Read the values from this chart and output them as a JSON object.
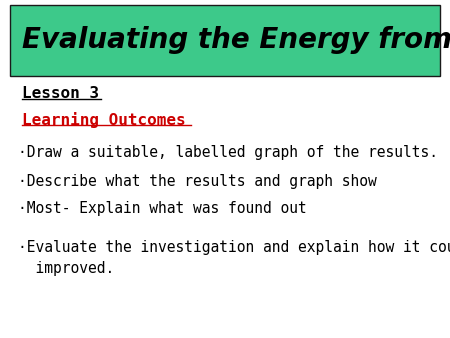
{
  "title": "Evaluating the Energy from Fuels",
  "title_bg_color": "#3DC98A",
  "title_text_color": "#000000",
  "title_font_size": 20,
  "lesson_label": "Lesson 3",
  "section_label": "Learning Outcomes",
  "section_color": "#CC0000",
  "bullet_lines": [
    "·Draw a suitable, labelled graph of the results.",
    "·Describe what the results and graph show",
    "·Most- Explain what was found out",
    "·Evaluate the investigation and explain how it could be",
    "  improved."
  ],
  "bullet_font_size": 10.5,
  "bg_color": "#FFFFFF",
  "lesson_font_size": 11.5,
  "section_font_size": 11.5
}
